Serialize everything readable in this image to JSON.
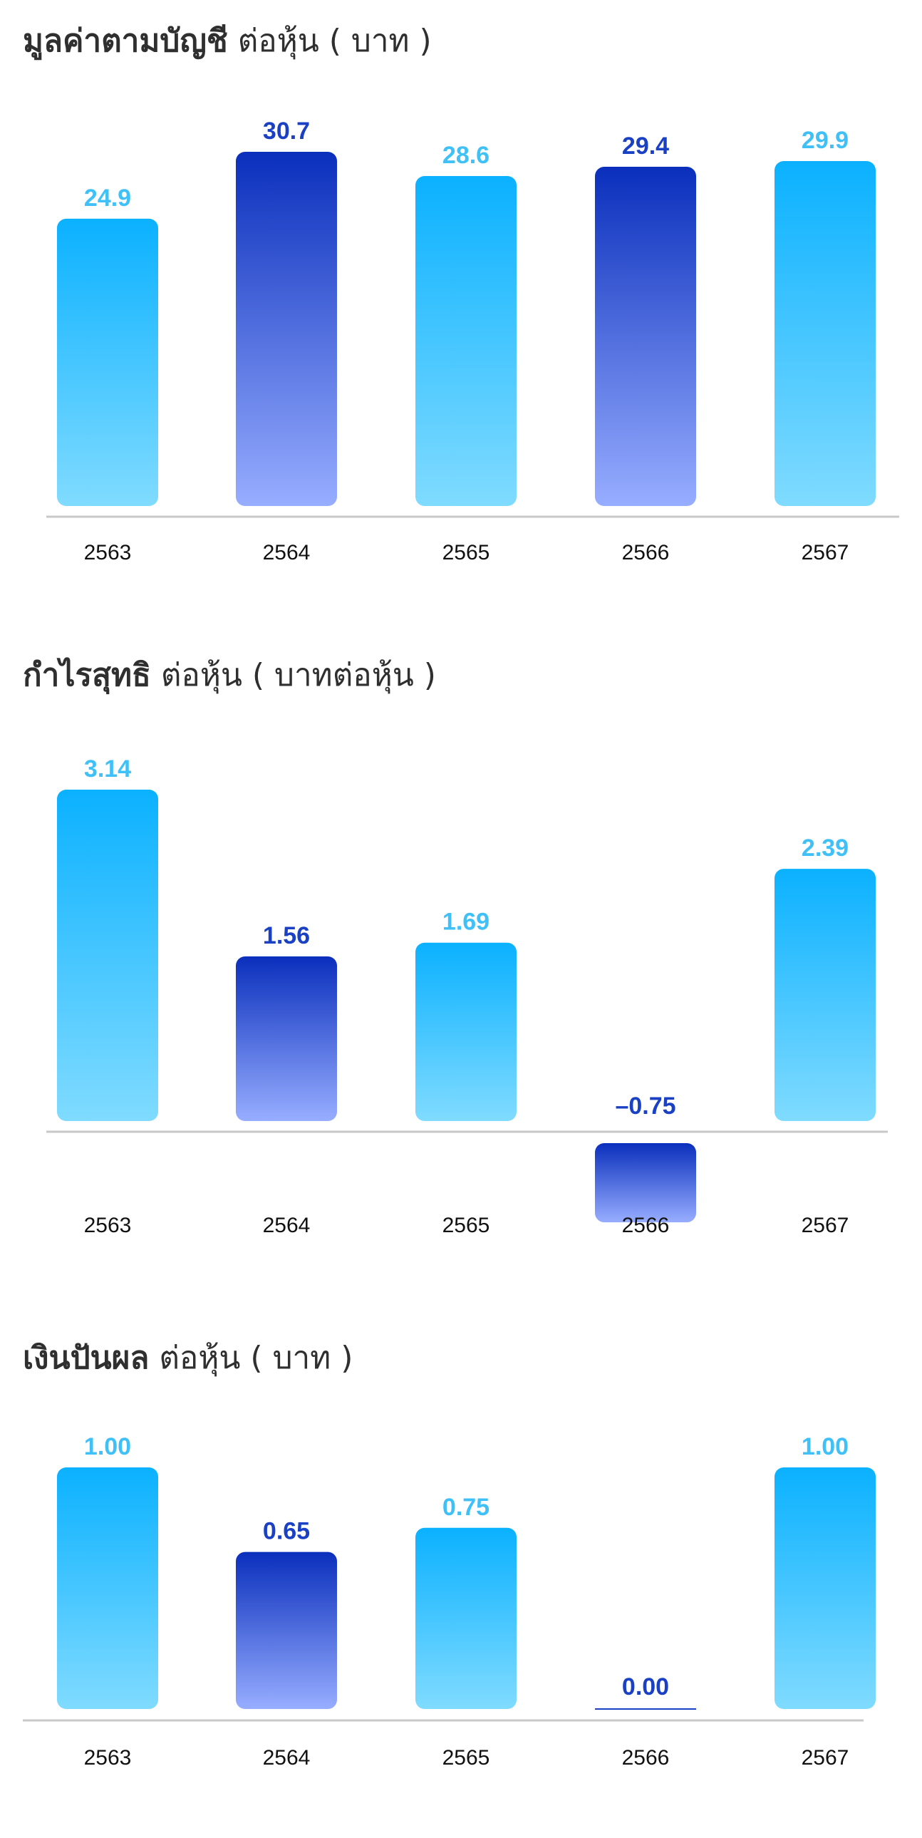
{
  "chart_data": [
    {
      "type": "bar",
      "title": "มูลค่าตามบัญชี",
      "subtitle": "ต่อหุ้น ( บาท )",
      "categories": [
        "2563",
        "2564",
        "2565",
        "2566",
        "2567"
      ],
      "values": [
        24.9,
        30.7,
        28.6,
        29.4,
        29.9
      ],
      "value_labels": [
        "24.9",
        "30.7",
        "28.6",
        "29.4",
        "29.9"
      ],
      "ylim": [
        0,
        30.7
      ],
      "grid": false,
      "legend": "none",
      "bar_styles": [
        "light",
        "dark",
        "light",
        "dark",
        "light"
      ]
    },
    {
      "type": "bar",
      "title": "กำไรสุทธิ",
      "subtitle": "ต่อหุ้น ( บาทต่อหุ้น )",
      "categories": [
        "2563",
        "2564",
        "2565",
        "2566",
        "2567"
      ],
      "values": [
        3.14,
        1.56,
        1.69,
        -0.75,
        2.39
      ],
      "value_labels": [
        "3.14",
        "1.56",
        "1.69",
        "–0.75",
        "2.39"
      ],
      "ylim": [
        -0.75,
        3.14
      ],
      "grid": false,
      "legend": "none",
      "bar_styles": [
        "light",
        "dark",
        "light",
        "dark",
        "light"
      ]
    },
    {
      "type": "bar",
      "title": "เงินปันผล",
      "subtitle": "ต่อหุ้น ( บาท )",
      "categories": [
        "2563",
        "2564",
        "2565",
        "2566",
        "2567"
      ],
      "values": [
        1.0,
        0.65,
        0.75,
        0.0,
        1.0
      ],
      "value_labels": [
        "1.00",
        "0.65",
        "0.75",
        "0.00",
        "1.00"
      ],
      "ylim": [
        0,
        1.0
      ],
      "grid": false,
      "legend": "none",
      "bar_styles": [
        "light",
        "dark",
        "light",
        "dark",
        "light"
      ]
    }
  ],
  "colors": {
    "light_top": "#0bb1ff",
    "light_bottom": "#80dbff",
    "light_label": "#3fc0f7",
    "dark_top": "#0a2fbc",
    "dark_bottom": "#97adff",
    "dark_label": "#1a40c4",
    "axis": "#c8c8c8",
    "title": "#2f2f2f"
  }
}
